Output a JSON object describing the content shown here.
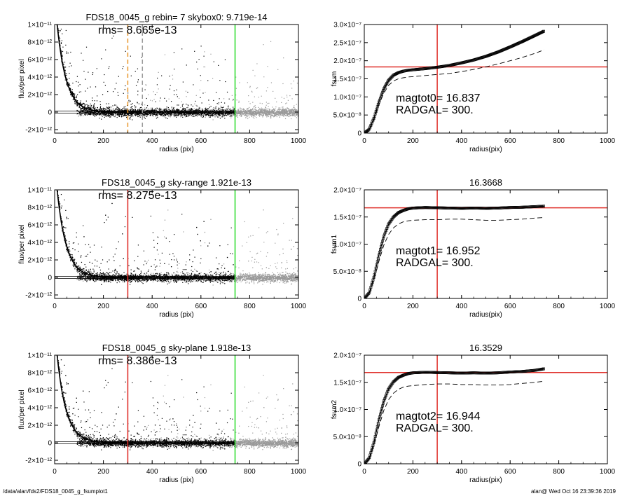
{
  "footer": {
    "left": "/data/alan/fds2/FDS18_0045_g_fsumplot1",
    "right": "alan@  Wed Oct 16 23:39:36 2019"
  },
  "colors": {
    "axis": "#000000",
    "points_dark": "#000000",
    "points_light": "#9a9a9a",
    "red_marker": "#e0302a",
    "green_marker": "#33dd33",
    "orange_marker": "#e8962a"
  },
  "chart_data": [
    {
      "id": "flux-top",
      "type": "scatter",
      "title": "FDS18_0045_g rebin= 7    skybox0:  9.719e-14",
      "annotations": [
        "rms= 8.665e-13"
      ],
      "xlabel": "radius (pix)",
      "ylabel": "flux/per pixel",
      "xlim": [
        0,
        1000
      ],
      "ylim": [
        -2.4e-12,
        1e-11
      ],
      "xticks": [
        0,
        200,
        400,
        600,
        800,
        1000
      ],
      "xtick_labels": [
        "0",
        "200",
        "400",
        "600",
        "800",
        "1000"
      ],
      "yticks": [
        -2e-12,
        0,
        2e-12,
        4e-12,
        6e-12,
        8e-12,
        1e-11
      ],
      "ytick_labels": [
        "-2×10⁻¹²",
        "0",
        "2×10⁻¹²",
        "4×10⁻¹²",
        "6×10⁻¹²",
        "8×10⁻¹²",
        "1×10⁻¹¹"
      ],
      "vlines": [
        {
          "x": 300,
          "color": "#e8962a",
          "style": "dashed"
        },
        {
          "x": 360,
          "color": "#9a9a9a",
          "style": "dashed"
        },
        {
          "x": 740,
          "color": "#33dd33",
          "style": "solid"
        }
      ],
      "profile_cutoff_radius": 740
    },
    {
      "id": "fsum-top",
      "type": "line",
      "title": "",
      "annotations": [
        "magtot0=  16.837",
        "RADGAL=    300."
      ],
      "xlabel": "radius(pix)",
      "ylabel": "fsum",
      "xlim": [
        0,
        1000
      ],
      "ylim": [
        0,
        3e-07
      ],
      "xticks": [
        0,
        200,
        400,
        600,
        800,
        1000
      ],
      "xtick_labels": [
        "0",
        "200",
        "400",
        "600",
        "800",
        "1000"
      ],
      "yticks": [
        0,
        5e-08,
        1e-07,
        1.5e-07,
        2e-07,
        2.5e-07,
        3e-07
      ],
      "ytick_labels": [
        "0",
        "5.0×10⁻⁸",
        "1.0×10⁻⁷",
        "1.5×10⁻⁷",
        "2.0×10⁻⁷",
        "2.5×10⁻⁷",
        "3.0×10⁻⁷"
      ],
      "vline": 300,
      "hline": 1.83e-07,
      "series": [
        {
          "style": "boxes",
          "x": [
            0,
            20,
            40,
            60,
            80,
            100,
            120,
            140,
            160,
            180,
            200,
            250,
            300,
            350,
            400,
            450,
            500,
            550,
            600,
            650,
            700,
            740
          ],
          "y": [
            0,
            1e-08,
            4.2e-08,
            8.6e-08,
            1.22e-07,
            1.46e-07,
            1.6e-07,
            1.67e-07,
            1.71e-07,
            1.735e-07,
            1.75e-07,
            1.78e-07,
            1.82e-07,
            1.87e-07,
            1.94e-07,
            2.02e-07,
            2.12e-07,
            2.24e-07,
            2.38e-07,
            2.53e-07,
            2.69e-07,
            2.82e-07
          ]
        },
        {
          "style": "dashed",
          "x": [
            0,
            20,
            40,
            60,
            80,
            100,
            120,
            140,
            160,
            180,
            200,
            250,
            300,
            350,
            400,
            450,
            500,
            550,
            600,
            650,
            700,
            740
          ],
          "y": [
            0,
            8e-09,
            3.8e-08,
            7.8e-08,
            1.1e-07,
            1.32e-07,
            1.44e-07,
            1.5e-07,
            1.53e-07,
            1.55e-07,
            1.56e-07,
            1.59e-07,
            1.62e-07,
            1.65e-07,
            1.7e-07,
            1.76e-07,
            1.83e-07,
            1.91e-07,
            2e-07,
            2.09e-07,
            2.2e-07,
            2.3e-07
          ]
        }
      ]
    },
    {
      "id": "flux-mid",
      "type": "scatter",
      "title": "FDS18_0045_g sky-range  1.921e-13",
      "annotations": [
        "rms= 8.275e-13"
      ],
      "xlabel": "radius (pix)",
      "ylabel": "flux/per pixel",
      "xlim": [
        0,
        1000
      ],
      "ylim": [
        -2.4e-12,
        1e-11
      ],
      "xticks": [
        0,
        200,
        400,
        600,
        800,
        1000
      ],
      "xtick_labels": [
        "0",
        "200",
        "400",
        "600",
        "800",
        "1000"
      ],
      "yticks": [
        -2e-12,
        0,
        2e-12,
        4e-12,
        6e-12,
        8e-12,
        1e-11
      ],
      "ytick_labels": [
        "-2×10⁻¹²",
        "0",
        "2×10⁻¹²",
        "4×10⁻¹²",
        "6×10⁻¹²",
        "8×10⁻¹²",
        "1×10⁻¹¹"
      ],
      "vlines": [
        {
          "x": 300,
          "color": "#e0302a",
          "style": "solid"
        },
        {
          "x": 740,
          "color": "#33dd33",
          "style": "solid"
        }
      ],
      "profile_cutoff_radius": 740
    },
    {
      "id": "fsum-mid",
      "type": "line",
      "title": "16.3668",
      "annotations": [
        "magtot1=  16.952",
        "RADGAL=    300."
      ],
      "xlabel": "radius(pix)",
      "ylabel": "fsum1",
      "xlim": [
        0,
        1000
      ],
      "ylim": [
        0,
        2e-07
      ],
      "xticks": [
        0,
        200,
        400,
        600,
        800,
        1000
      ],
      "xtick_labels": [
        "0",
        "200",
        "400",
        "600",
        "800",
        "1000"
      ],
      "yticks": [
        0,
        5e-08,
        1e-07,
        1.5e-07,
        2e-07
      ],
      "ytick_labels": [
        "0",
        "5.0×10⁻⁸",
        "1.0×10⁻⁷",
        "1.5×10⁻⁷",
        "2.0×10⁻⁷"
      ],
      "vline": 300,
      "hline": 1.67e-07,
      "series": [
        {
          "style": "boxes",
          "x": [
            0,
            20,
            40,
            60,
            80,
            100,
            120,
            140,
            160,
            180,
            200,
            250,
            300,
            350,
            400,
            450,
            500,
            550,
            600,
            650,
            700,
            740
          ],
          "y": [
            0,
            1e-08,
            4e-08,
            8e-08,
            1.14e-07,
            1.37e-07,
            1.5e-07,
            1.58e-07,
            1.62e-07,
            1.65e-07,
            1.665e-07,
            1.675e-07,
            1.67e-07,
            1.665e-07,
            1.66e-07,
            1.665e-07,
            1.66e-07,
            1.665e-07,
            1.675e-07,
            1.68e-07,
            1.69e-07,
            1.7e-07
          ]
        },
        {
          "style": "dashed",
          "x": [
            0,
            20,
            40,
            60,
            80,
            100,
            120,
            140,
            160,
            180,
            200,
            250,
            300,
            350,
            400,
            450,
            500,
            550,
            600,
            650,
            700,
            740
          ],
          "y": [
            0,
            8e-09,
            3.4e-08,
            6.8e-08,
            9.8e-08,
            1.18e-07,
            1.3e-07,
            1.37e-07,
            1.41e-07,
            1.43e-07,
            1.44e-07,
            1.45e-07,
            1.45e-07,
            1.46e-07,
            1.46e-07,
            1.45e-07,
            1.44e-07,
            1.44e-07,
            1.45e-07,
            1.46e-07,
            1.48e-07,
            1.49e-07
          ]
        }
      ]
    },
    {
      "id": "flux-bot",
      "type": "scatter",
      "title": "FDS18_0045_g sky-plane  1.918e-13",
      "annotations": [
        "rms= 8.386e-13"
      ],
      "xlabel": "radius (pix)",
      "ylabel": "flux/per pixel",
      "xlim": [
        0,
        1000
      ],
      "ylim": [
        -2.4e-12,
        1e-11
      ],
      "xticks": [
        0,
        200,
        400,
        600,
        800,
        1000
      ],
      "xtick_labels": [
        "0",
        "200",
        "400",
        "600",
        "800",
        "1000"
      ],
      "yticks": [
        -2e-12,
        0,
        2e-12,
        4e-12,
        6e-12,
        8e-12,
        1e-11
      ],
      "ytick_labels": [
        "-2×10⁻¹²",
        "0",
        "2×10⁻¹²",
        "4×10⁻¹²",
        "6×10⁻¹²",
        "8×10⁻¹²",
        "1×10⁻¹¹"
      ],
      "vlines": [
        {
          "x": 300,
          "color": "#e0302a",
          "style": "solid"
        },
        {
          "x": 740,
          "color": "#33dd33",
          "style": "solid"
        }
      ],
      "profile_cutoff_radius": 740
    },
    {
      "id": "fsum-bot",
      "type": "line",
      "title": "16.3529",
      "annotations": [
        "magtot2=  16.944",
        "RADGAL=    300."
      ],
      "xlabel": "radius(pix)",
      "ylabel": "fsum2",
      "xlim": [
        0,
        1000
      ],
      "ylim": [
        0,
        2e-07
      ],
      "xticks": [
        0,
        200,
        400,
        600,
        800,
        1000
      ],
      "xtick_labels": [
        "0",
        "200",
        "400",
        "600",
        "800",
        "1000"
      ],
      "yticks": [
        0,
        5e-08,
        1e-07,
        1.5e-07,
        2e-07
      ],
      "ytick_labels": [
        "0",
        "5.0×10⁻⁸",
        "1.0×10⁻⁷",
        "1.5×10⁻⁷",
        "2.0×10⁻⁷"
      ],
      "vline": 300,
      "hline": 1.68e-07,
      "series": [
        {
          "style": "boxes",
          "x": [
            0,
            20,
            40,
            60,
            80,
            100,
            120,
            140,
            160,
            180,
            200,
            250,
            300,
            350,
            400,
            450,
            500,
            550,
            600,
            650,
            700,
            740
          ],
          "y": [
            0,
            1e-08,
            4e-08,
            8.1e-08,
            1.15e-07,
            1.38e-07,
            1.51e-07,
            1.59e-07,
            1.63e-07,
            1.66e-07,
            1.675e-07,
            1.685e-07,
            1.68e-07,
            1.675e-07,
            1.67e-07,
            1.675e-07,
            1.67e-07,
            1.675e-07,
            1.69e-07,
            1.7e-07,
            1.72e-07,
            1.75e-07
          ]
        },
        {
          "style": "dashed",
          "x": [
            0,
            20,
            40,
            60,
            80,
            100,
            120,
            140,
            160,
            180,
            200,
            250,
            300,
            350,
            400,
            450,
            500,
            550,
            600,
            650,
            700,
            740
          ],
          "y": [
            0,
            8e-09,
            3.4e-08,
            6.8e-08,
            9.8e-08,
            1.18e-07,
            1.3e-07,
            1.37e-07,
            1.41e-07,
            1.43e-07,
            1.44e-07,
            1.46e-07,
            1.47e-07,
            1.47e-07,
            1.46e-07,
            1.46e-07,
            1.45e-07,
            1.45e-07,
            1.46e-07,
            1.48e-07,
            1.5e-07,
            1.52e-07
          ]
        }
      ]
    }
  ]
}
